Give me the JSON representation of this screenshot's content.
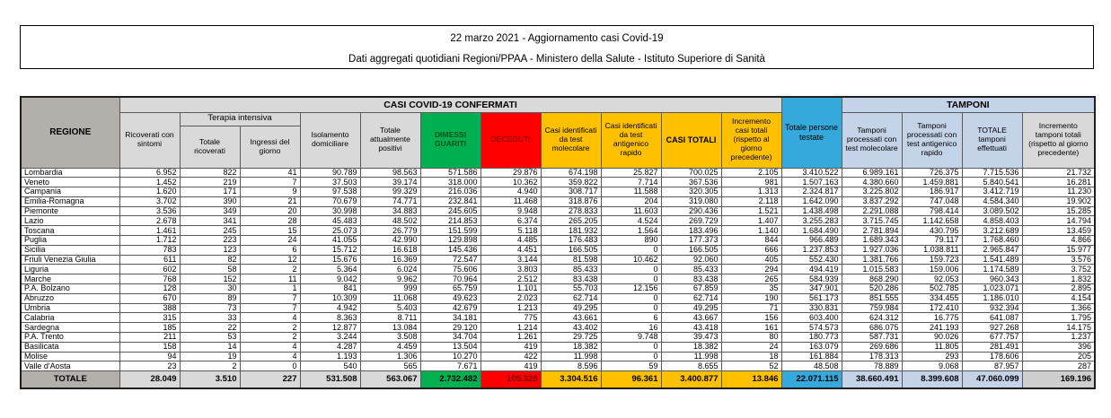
{
  "header": {
    "title_line1": "22 marzo 2021 - Aggiornamento casi Covid-19",
    "title_line2": "Dati aggregati quotidiani Regioni/PPAA - Ministero della Salute - Istituto Superiore di Sanità"
  },
  "colors": {
    "green": "#00b050",
    "red": "#ff0000",
    "orange": "#ffc000",
    "cyan": "#35a9dc",
    "light_blue": "#c5d3e8",
    "gray_header": "#d9d9d9",
    "gray_dark": "#b3b0ab"
  },
  "table": {
    "group_headers": {
      "regione": "REGIONE",
      "casi_confermati": "CASI COVID-19 CONFERMATI",
      "terapia_intensiva": "Terapia intensiva",
      "persone_testate": "Totale persone testate",
      "tamponi": "TAMPONI"
    },
    "columns": [
      "Ricoverati con sintomi",
      "Totale ricoverati",
      "Ingressi del giorno",
      "Isolamento domiciliare",
      "Totale attualmente positivi",
      "DIMESSI GUARITI",
      "DECEDUTI",
      "Casi identificati da test molecolare",
      "Casi identificati da test antigenico rapido",
      "CASI TOTALI",
      "Incremento casi totali (rispetto al giorno precedente)",
      "Totale persone testate",
      "Tamponi processati con test molecolare",
      "Tamponi processati con test antigenico rapido",
      "TOTALE tamponi effettuati",
      "Incremento tamponi totali (rispetto al giorno precedente)"
    ],
    "rows": [
      {
        "region": "Lombardia",
        "values": [
          "6.952",
          "822",
          "41",
          "90.789",
          "98.563",
          "571.586",
          "29.876",
          "674.198",
          "25.827",
          "700.025",
          "2.105",
          "3.410.522",
          "6.989.161",
          "726.375",
          "7.715.536",
          "21.732"
        ]
      },
      {
        "region": "Veneto",
        "values": [
          "1.452",
          "219",
          "7",
          "37.503",
          "39.174",
          "318.000",
          "10.362",
          "359.822",
          "7.714",
          "367.536",
          "981",
          "1.507.163",
          "4.380.660",
          "1.459.881",
          "5.840.541",
          "16.281"
        ]
      },
      {
        "region": "Campania",
        "values": [
          "1.620",
          "171",
          "9",
          "97.538",
          "99.329",
          "216.036",
          "4.940",
          "308.717",
          "11.588",
          "320.305",
          "1.313",
          "2.324.817",
          "3.225.802",
          "186.917",
          "3.412.719",
          "11.230"
        ]
      },
      {
        "region": "Emilia-Romagna",
        "values": [
          "3.702",
          "390",
          "21",
          "70.679",
          "74.771",
          "232.841",
          "11.468",
          "318.876",
          "204",
          "319.080",
          "2.118",
          "1.642.090",
          "3.837.292",
          "747.048",
          "4.584.340",
          "19.902"
        ]
      },
      {
        "region": "Piemonte",
        "values": [
          "3.536",
          "349",
          "20",
          "30.998",
          "34.883",
          "245.605",
          "9.948",
          "278.833",
          "11.603",
          "290.436",
          "1.521",
          "1.438.498",
          "2.291.088",
          "798.414",
          "3.089.502",
          "15.285"
        ]
      },
      {
        "region": "Lazio",
        "values": [
          "2.678",
          "341",
          "28",
          "45.483",
          "48.502",
          "214.853",
          "6.374",
          "265.205",
          "4.524",
          "269.729",
          "1.407",
          "3.255.283",
          "3.715.745",
          "1.142.658",
          "4.858.403",
          "14.794"
        ]
      },
      {
        "region": "Toscana",
        "values": [
          "1.461",
          "245",
          "15",
          "25.073",
          "26.779",
          "151.599",
          "5.118",
          "181.932",
          "1.564",
          "183.496",
          "1.140",
          "1.684.490",
          "2.781.894",
          "430.795",
          "3.212.689",
          "13.459"
        ]
      },
      {
        "region": "Puglia",
        "values": [
          "1.712",
          "223",
          "24",
          "41.055",
          "42.990",
          "129.898",
          "4.485",
          "176.483",
          "890",
          "177.373",
          "844",
          "966.489",
          "1.689.343",
          "79.117",
          "1.768.460",
          "4.866"
        ]
      },
      {
        "region": "Sicilia",
        "values": [
          "783",
          "123",
          "6",
          "15.712",
          "16.618",
          "145.436",
          "4.451",
          "166.505",
          "0",
          "166.505",
          "666",
          "1.237.853",
          "1.927.036",
          "1.038.811",
          "2.965.847",
          "15.977"
        ]
      },
      {
        "region": "Friuli Venezia Giulia",
        "values": [
          "611",
          "82",
          "12",
          "15.676",
          "16.369",
          "72.547",
          "3.144",
          "81.598",
          "10.462",
          "92.060",
          "405",
          "552.430",
          "1.381.766",
          "159.723",
          "1.541.489",
          "3.576"
        ]
      },
      {
        "region": "Liguria",
        "values": [
          "602",
          "58",
          "2",
          "5.364",
          "6.024",
          "75.606",
          "3.803",
          "85.433",
          "0",
          "85.433",
          "294",
          "494.419",
          "1.015.583",
          "159.006",
          "1.174.589",
          "3.752"
        ]
      },
      {
        "region": "Marche",
        "values": [
          "768",
          "152",
          "11",
          "9.042",
          "9.962",
          "70.964",
          "2.512",
          "83.438",
          "0",
          "83.438",
          "265",
          "584.939",
          "868.290",
          "92.053",
          "960.343",
          "1.832"
        ]
      },
      {
        "region": "P.A. Bolzano",
        "values": [
          "128",
          "30",
          "1",
          "841",
          "999",
          "65.759",
          "1.101",
          "55.703",
          "12.156",
          "67.859",
          "35",
          "347.901",
          "520.286",
          "502.785",
          "1.023.071",
          "2.895"
        ]
      },
      {
        "region": "Abruzzo",
        "values": [
          "670",
          "89",
          "7",
          "10.309",
          "11.068",
          "49.623",
          "2.023",
          "62.714",
          "0",
          "62.714",
          "190",
          "561.173",
          "851.555",
          "334.455",
          "1.186.010",
          "4.154"
        ]
      },
      {
        "region": "Umbria",
        "values": [
          "388",
          "73",
          "7",
          "4.942",
          "5.403",
          "42.679",
          "1.213",
          "49.295",
          "0",
          "49.295",
          "71",
          "330.831",
          "759.984",
          "172.410",
          "932.394",
          "1.366"
        ]
      },
      {
        "region": "Calabria",
        "values": [
          "315",
          "33",
          "4",
          "8.363",
          "8.711",
          "34.181",
          "775",
          "43.661",
          "6",
          "43.667",
          "156",
          "603.400",
          "624.312",
          "16.775",
          "641.087",
          "1.795"
        ]
      },
      {
        "region": "Sardegna",
        "values": [
          "185",
          "22",
          "2",
          "12.877",
          "13.084",
          "29.120",
          "1.214",
          "43.402",
          "16",
          "43.418",
          "161",
          "574.573",
          "686.075",
          "241.193",
          "927.268",
          "14.175"
        ]
      },
      {
        "region": "P.A. Trento",
        "values": [
          "211",
          "53",
          "2",
          "3.244",
          "3.508",
          "34.704",
          "1.261",
          "29.725",
          "9.748",
          "39.473",
          "80",
          "180.773",
          "587.731",
          "90.026",
          "677.757",
          "1.237"
        ]
      },
      {
        "region": "Basilicata",
        "values": [
          "158",
          "14",
          "4",
          "4.287",
          "4.459",
          "13.504",
          "419",
          "18.382",
          "0",
          "18.382",
          "24",
          "163.079",
          "269.686",
          "11.805",
          "281.491",
          "396"
        ]
      },
      {
        "region": "Molise",
        "values": [
          "94",
          "19",
          "4",
          "1.193",
          "1.306",
          "10.270",
          "422",
          "11.998",
          "0",
          "11.998",
          "18",
          "161.884",
          "178.313",
          "293",
          "178.606",
          "205"
        ]
      },
      {
        "region": "Valle d'Aosta",
        "values": [
          "23",
          "2",
          "0",
          "540",
          "565",
          "7.671",
          "419",
          "8.596",
          "59",
          "8.655",
          "52",
          "48.508",
          "78.889",
          "9.068",
          "87.957",
          "287"
        ]
      }
    ],
    "total_row": {
      "label": "TOTALE",
      "values": [
        "28.049",
        "3.510",
        "227",
        "531.508",
        "563.067",
        "2.732.482",
        "105.328",
        "3.304.516",
        "96.361",
        "3.400.877",
        "13.846",
        "22.071.115",
        "38.660.491",
        "8.399.608",
        "47.060.099",
        "169.196"
      ]
    }
  }
}
